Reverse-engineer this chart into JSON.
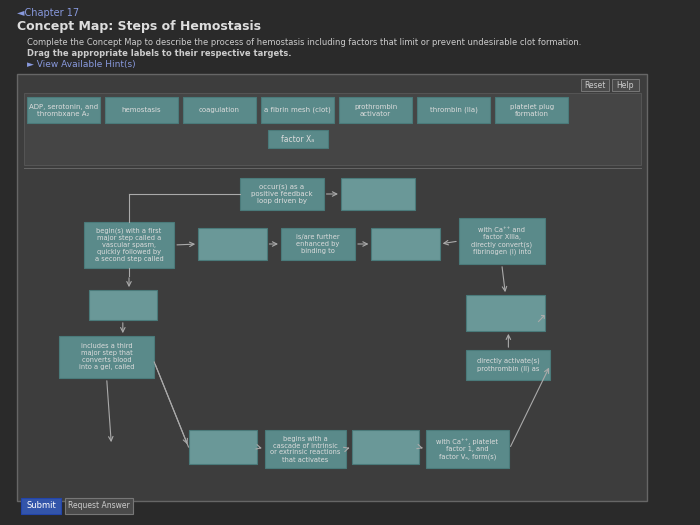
{
  "page_bg": "#2a2a2a",
  "outer_bg": "#3a3a3a",
  "header_bg": "#2e2e2e",
  "diagram_bg": "#3d3d3d",
  "diagram_inner_bg": "#454545",
  "box_teal_bg": "#5a8a8a",
  "box_teal_border": "#4a7a7a",
  "box_empty_bg": "#6a9898",
  "box_empty_border": "#4a7a7a",
  "box_btn_bg": "#555555",
  "box_btn_border": "#777777",
  "box_submit_bg": "#3355aa",
  "text_light": "#cccccc",
  "text_white": "#eeeeee",
  "text_blue_link": "#8899dd",
  "text_title": "#dddddd",
  "text_box": "#dddddd",
  "arrow_color": "#aaaaaa",
  "divider_color": "#666666",
  "title_chapter": "◄Chapter 17",
  "title_main": "Concept Map: Steps of Hemostasis",
  "subtitle1": "Complete the Concept Map to describe the process of hemostasis including factors that limit or prevent undesirable clot formation.",
  "subtitle2": "Drag the appropriate labels to their respective targets.",
  "hint_text": "► View Available Hint(s)",
  "top_labels": [
    "ADP, serotonin, and\nthrombxane A₂",
    "hemostasis",
    "coagulation",
    "a fibrin mesh (clot)",
    "prothrombin\nactivator",
    "thrombin (IIa)",
    "platelet plug\nformation"
  ],
  "factor_label": "factor Xₐ",
  "node_texts": {
    "occurs": "occur(s) as a\npositive feedback\nloop driven by",
    "begins_vascular": "begin(s) with a first\nmajor step called a\nvascular spasm,\nquickly followed by\na second step called",
    "further_enhanced": "is/are further\nenhanced by\nbinding to",
    "with_ca_xiii": "with Ca⁺⁺ and\nfactor XIIIa,\ndirectly convert(s)\nfibrinogen (I) into",
    "includes_third": "includes a third\nmajor step that\nconverts blood\ninto a gel, called",
    "directly_activates": "directly activate(s)\nprothrombin (II) as",
    "begins_cascade": "begins with a\ncascade of intrinsic\nor extrinsic reactions\nthat activates",
    "with_ca_platelet": "with Ca⁺⁺, platelet\nfactor 1, and\nfactor Vₐ, form(s)"
  },
  "button_submit": "Submit",
  "button_request": "Request Answer",
  "btn_reset": "Reset",
  "btn_help": "Help"
}
